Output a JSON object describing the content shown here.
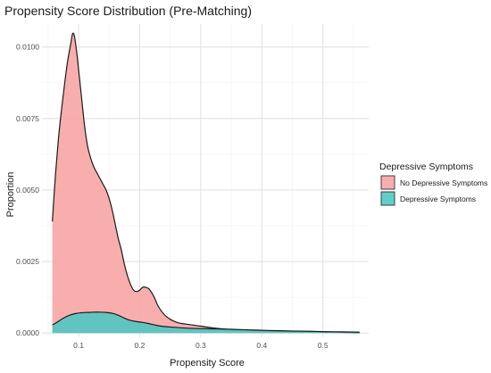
{
  "chart_data": {
    "type": "area",
    "title": "Propensity Score Distribution (Pre-Matching)",
    "xlabel": "Propensity Score",
    "ylabel": "Proportion",
    "xlim": [
      0.04,
      0.575
    ],
    "ylim": [
      -0.00015,
      0.0108
    ],
    "x_ticks": [
      0.1,
      0.2,
      0.3,
      0.4,
      0.5
    ],
    "x_tick_labels": [
      "0.1",
      "0.2",
      "0.3",
      "0.4",
      "0.5"
    ],
    "y_ticks": [
      0.0,
      0.0025,
      0.005,
      0.0075,
      0.01
    ],
    "y_tick_labels": [
      "0.0000",
      "0.0025",
      "0.0050",
      "0.0075",
      "0.0100"
    ],
    "grid": true,
    "legend": {
      "title": "Depressive Symptoms",
      "position": "right",
      "entries": [
        "No Depressive Symptoms",
        "Depressive Symptoms"
      ]
    },
    "series": [
      {
        "name": "No Depressive Symptoms",
        "color": "#F8A3A3",
        "points": [
          [
            0.057,
            0.0039
          ],
          [
            0.062,
            0.0055
          ],
          [
            0.067,
            0.0068
          ],
          [
            0.072,
            0.0078
          ],
          [
            0.077,
            0.0087
          ],
          [
            0.082,
            0.0095
          ],
          [
            0.087,
            0.0101
          ],
          [
            0.09,
            0.01045
          ],
          [
            0.093,
            0.0104
          ],
          [
            0.097,
            0.0098
          ],
          [
            0.1,
            0.0092
          ],
          [
            0.105,
            0.0082
          ],
          [
            0.11,
            0.0072
          ],
          [
            0.115,
            0.0065
          ],
          [
            0.12,
            0.0061
          ],
          [
            0.125,
            0.0058
          ],
          [
            0.13,
            0.0056
          ],
          [
            0.135,
            0.0054
          ],
          [
            0.14,
            0.0052
          ],
          [
            0.145,
            0.005
          ],
          [
            0.15,
            0.0047
          ],
          [
            0.155,
            0.0043
          ],
          [
            0.16,
            0.0038
          ],
          [
            0.165,
            0.0033
          ],
          [
            0.17,
            0.0029
          ],
          [
            0.175,
            0.0024
          ],
          [
            0.18,
            0.002
          ],
          [
            0.185,
            0.0017
          ],
          [
            0.19,
            0.0015
          ],
          [
            0.195,
            0.00145
          ],
          [
            0.2,
            0.0015
          ],
          [
            0.205,
            0.0016
          ],
          [
            0.21,
            0.0016
          ],
          [
            0.215,
            0.00155
          ],
          [
            0.22,
            0.0014
          ],
          [
            0.225,
            0.0012
          ],
          [
            0.23,
            0.00095
          ],
          [
            0.24,
            0.00065
          ],
          [
            0.25,
            0.00048
          ],
          [
            0.26,
            0.00038
          ],
          [
            0.27,
            0.00033
          ],
          [
            0.28,
            0.0003
          ],
          [
            0.3,
            0.00024
          ],
          [
            0.32,
            0.00018
          ],
          [
            0.35,
            0.00012
          ],
          [
            0.38,
            9e-05
          ],
          [
            0.4,
            8e-05
          ],
          [
            0.42,
            6e-05
          ],
          [
            0.45,
            5e-05
          ],
          [
            0.5,
            3e-05
          ],
          [
            0.53,
            2e-05
          ],
          [
            0.56,
            1e-05
          ]
        ]
      },
      {
        "name": "Depressive Symptoms",
        "color": "#4CC7C3",
        "points": [
          [
            0.057,
            0.00028
          ],
          [
            0.065,
            0.00038
          ],
          [
            0.075,
            0.00052
          ],
          [
            0.085,
            0.00062
          ],
          [
            0.095,
            0.00068
          ],
          [
            0.105,
            0.00071
          ],
          [
            0.115,
            0.00072
          ],
          [
            0.125,
            0.00073
          ],
          [
            0.135,
            0.00073
          ],
          [
            0.145,
            0.00072
          ],
          [
            0.155,
            0.00069
          ],
          [
            0.165,
            0.00062
          ],
          [
            0.175,
            0.00052
          ],
          [
            0.185,
            0.00044
          ],
          [
            0.195,
            0.0004
          ],
          [
            0.205,
            0.00037
          ],
          [
            0.215,
            0.00033
          ],
          [
            0.225,
            0.00028
          ],
          [
            0.235,
            0.00024
          ],
          [
            0.25,
            0.00021
          ],
          [
            0.27,
            0.00018
          ],
          [
            0.29,
            0.00016
          ],
          [
            0.31,
            0.00015
          ],
          [
            0.33,
            0.00014
          ],
          [
            0.35,
            0.00013
          ],
          [
            0.38,
            0.00011
          ],
          [
            0.41,
            9e-05
          ],
          [
            0.45,
            7e-05
          ],
          [
            0.48,
            6e-05
          ],
          [
            0.5,
            5e-05
          ],
          [
            0.53,
            4e-05
          ],
          [
            0.56,
            3e-05
          ]
        ]
      }
    ]
  }
}
